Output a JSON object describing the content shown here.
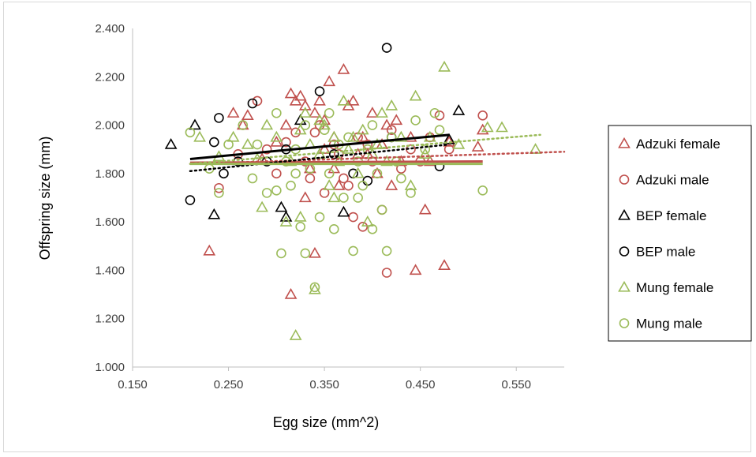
{
  "chart_data": {
    "type": "scatter",
    "xlabel": "Egg size (mm^2)",
    "ylabel": "Offspring size (mm)",
    "xlim": [
      0.15,
      0.6
    ],
    "ylim": [
      1.0,
      2.4
    ],
    "xticks": [
      "0.150",
      "0.250",
      "0.350",
      "0.450",
      "0.550"
    ],
    "yticks": [
      "1.000",
      "1.200",
      "1.400",
      "1.600",
      "1.800",
      "2.000",
      "2.200",
      "2.400"
    ],
    "grid": false,
    "legend_position": "right",
    "series": [
      {
        "name": "Adzuki female",
        "marker": "triangle",
        "color": "#c0504d",
        "points": [
          [
            0.23,
            1.48
          ],
          [
            0.255,
            2.05
          ],
          [
            0.265,
            2.0
          ],
          [
            0.27,
            2.04
          ],
          [
            0.285,
            1.86
          ],
          [
            0.3,
            1.93
          ],
          [
            0.31,
            2.0
          ],
          [
            0.315,
            2.13
          ],
          [
            0.315,
            1.3
          ],
          [
            0.32,
            2.1
          ],
          [
            0.325,
            2.12
          ],
          [
            0.33,
            2.08
          ],
          [
            0.335,
            1.82
          ],
          [
            0.34,
            2.05
          ],
          [
            0.34,
            1.47
          ],
          [
            0.345,
            2.1
          ],
          [
            0.35,
            1.9
          ],
          [
            0.355,
            2.18
          ],
          [
            0.36,
            1.95
          ],
          [
            0.365,
            1.75
          ],
          [
            0.37,
            2.23
          ],
          [
            0.375,
            2.08
          ],
          [
            0.38,
            2.1
          ],
          [
            0.39,
            1.95
          ],
          [
            0.395,
            1.88
          ],
          [
            0.4,
            2.05
          ],
          [
            0.405,
            1.8
          ],
          [
            0.41,
            1.92
          ],
          [
            0.415,
            2.0
          ],
          [
            0.42,
            1.75
          ],
          [
            0.425,
            2.02
          ],
          [
            0.43,
            1.85
          ],
          [
            0.44,
            1.95
          ],
          [
            0.445,
            1.4
          ],
          [
            0.455,
            1.65
          ],
          [
            0.46,
            1.85
          ],
          [
            0.475,
            1.42
          ],
          [
            0.48,
            1.93
          ],
          [
            0.51,
            1.91
          ],
          [
            0.515,
            1.98
          ],
          [
            0.33,
            1.7
          ],
          [
            0.36,
            1.82
          ],
          [
            0.385,
            1.88
          ],
          [
            0.35,
            2.02
          ]
        ]
      },
      {
        "name": "Adzuki male",
        "marker": "circle",
        "color": "#c0504d",
        "points": [
          [
            0.24,
            1.74
          ],
          [
            0.26,
            1.88
          ],
          [
            0.28,
            2.1
          ],
          [
            0.29,
            1.9
          ],
          [
            0.3,
            1.8
          ],
          [
            0.31,
            1.93
          ],
          [
            0.32,
            1.97
          ],
          [
            0.33,
            1.85
          ],
          [
            0.34,
            1.97
          ],
          [
            0.35,
            1.72
          ],
          [
            0.36,
            1.92
          ],
          [
            0.365,
            1.88
          ],
          [
            0.37,
            1.78
          ],
          [
            0.38,
            1.62
          ],
          [
            0.385,
            1.95
          ],
          [
            0.39,
            1.58
          ],
          [
            0.4,
            1.85
          ],
          [
            0.41,
            1.65
          ],
          [
            0.415,
            1.39
          ],
          [
            0.42,
            1.98
          ],
          [
            0.43,
            1.82
          ],
          [
            0.44,
            1.9
          ],
          [
            0.45,
            1.85
          ],
          [
            0.46,
            1.95
          ],
          [
            0.47,
            2.04
          ],
          [
            0.48,
            1.9
          ],
          [
            0.515,
            2.04
          ],
          [
            0.345,
            2.0
          ],
          [
            0.375,
            1.75
          ],
          [
            0.395,
            1.92
          ],
          [
            0.335,
            1.78
          ]
        ]
      },
      {
        "name": "BEP female",
        "marker": "triangle",
        "color": "#000000",
        "points": [
          [
            0.19,
            1.92
          ],
          [
            0.215,
            2.0
          ],
          [
            0.235,
            1.63
          ],
          [
            0.305,
            1.66
          ],
          [
            0.31,
            1.62
          ],
          [
            0.325,
            2.02
          ],
          [
            0.37,
            1.64
          ],
          [
            0.48,
            1.94
          ],
          [
            0.49,
            2.06
          ]
        ]
      },
      {
        "name": "BEP male",
        "marker": "circle",
        "color": "#000000",
        "points": [
          [
            0.21,
            1.69
          ],
          [
            0.235,
            1.93
          ],
          [
            0.24,
            2.03
          ],
          [
            0.245,
            1.8
          ],
          [
            0.26,
            1.85
          ],
          [
            0.275,
            2.09
          ],
          [
            0.29,
            1.85
          ],
          [
            0.31,
            1.9
          ],
          [
            0.345,
            2.14
          ],
          [
            0.36,
            1.88
          ],
          [
            0.38,
            1.8
          ],
          [
            0.395,
            1.77
          ],
          [
            0.415,
            2.32
          ],
          [
            0.42,
            1.95
          ],
          [
            0.47,
            1.83
          ]
        ]
      },
      {
        "name": "Mung female",
        "marker": "triangle",
        "color": "#9bbb59",
        "points": [
          [
            0.22,
            1.95
          ],
          [
            0.24,
            1.87
          ],
          [
            0.255,
            1.95
          ],
          [
            0.27,
            1.92
          ],
          [
            0.28,
            1.86
          ],
          [
            0.285,
            1.66
          ],
          [
            0.29,
            2.0
          ],
          [
            0.3,
            1.95
          ],
          [
            0.31,
            1.6
          ],
          [
            0.315,
            1.85
          ],
          [
            0.32,
            1.13
          ],
          [
            0.325,
            1.98
          ],
          [
            0.33,
            2.05
          ],
          [
            0.335,
            1.92
          ],
          [
            0.34,
            1.32
          ],
          [
            0.345,
            1.88
          ],
          [
            0.35,
            2.0
          ],
          [
            0.355,
            1.75
          ],
          [
            0.36,
            1.95
          ],
          [
            0.365,
            1.85
          ],
          [
            0.37,
            2.1
          ],
          [
            0.375,
            1.9
          ],
          [
            0.38,
            1.95
          ],
          [
            0.385,
            1.8
          ],
          [
            0.39,
            1.98
          ],
          [
            0.395,
            1.6
          ],
          [
            0.4,
            1.88
          ],
          [
            0.405,
            1.92
          ],
          [
            0.41,
            2.05
          ],
          [
            0.415,
            1.85
          ],
          [
            0.42,
            2.08
          ],
          [
            0.43,
            1.95
          ],
          [
            0.44,
            1.75
          ],
          [
            0.445,
            2.12
          ],
          [
            0.455,
            1.88
          ],
          [
            0.46,
            1.95
          ],
          [
            0.475,
            2.24
          ],
          [
            0.49,
            1.92
          ],
          [
            0.52,
            1.99
          ],
          [
            0.535,
            1.99
          ],
          [
            0.57,
            1.9
          ],
          [
            0.325,
            1.62
          ],
          [
            0.36,
            1.7
          ],
          [
            0.345,
            2.02
          ]
        ]
      },
      {
        "name": "Mung male",
        "marker": "circle",
        "color": "#9bbb59",
        "points": [
          [
            0.21,
            1.97
          ],
          [
            0.23,
            1.82
          ],
          [
            0.24,
            1.72
          ],
          [
            0.25,
            1.92
          ],
          [
            0.265,
            2.0
          ],
          [
            0.275,
            1.78
          ],
          [
            0.28,
            1.92
          ],
          [
            0.29,
            1.72
          ],
          [
            0.3,
            2.05
          ],
          [
            0.305,
            1.47
          ],
          [
            0.31,
            1.85
          ],
          [
            0.315,
            1.75
          ],
          [
            0.32,
            1.9
          ],
          [
            0.325,
            1.58
          ],
          [
            0.33,
            1.47
          ],
          [
            0.335,
            1.82
          ],
          [
            0.34,
            1.33
          ],
          [
            0.345,
            1.62
          ],
          [
            0.35,
            1.98
          ],
          [
            0.355,
            1.8
          ],
          [
            0.36,
            1.57
          ],
          [
            0.365,
            1.92
          ],
          [
            0.37,
            1.7
          ],
          [
            0.375,
            1.95
          ],
          [
            0.38,
            1.48
          ],
          [
            0.385,
            1.85
          ],
          [
            0.39,
            1.75
          ],
          [
            0.395,
            1.9
          ],
          [
            0.4,
            1.57
          ],
          [
            0.405,
            1.8
          ],
          [
            0.41,
            1.65
          ],
          [
            0.415,
            1.48
          ],
          [
            0.42,
            1.95
          ],
          [
            0.425,
            1.85
          ],
          [
            0.43,
            1.78
          ],
          [
            0.44,
            1.72
          ],
          [
            0.445,
            2.02
          ],
          [
            0.455,
            1.9
          ],
          [
            0.465,
            2.05
          ],
          [
            0.47,
            1.98
          ],
          [
            0.515,
            1.73
          ],
          [
            0.3,
            1.73
          ],
          [
            0.33,
            2.0
          ],
          [
            0.355,
            2.05
          ],
          [
            0.385,
            1.7
          ],
          [
            0.4,
            2.0
          ],
          [
            0.32,
            1.8
          ]
        ]
      }
    ],
    "trendlines": [
      {
        "series": "Adzuki female",
        "style": "solid",
        "color": "#c0504d",
        "x": [
          0.21,
          0.515
        ],
        "y": [
          1.845,
          1.85
        ]
      },
      {
        "series": "Adzuki male",
        "style": "dotted",
        "color": "#c0504d",
        "x": [
          0.21,
          0.6
        ],
        "y": [
          1.84,
          1.89
        ]
      },
      {
        "series": "BEP female",
        "style": "solid",
        "color": "#000000",
        "x": [
          0.21,
          0.48
        ],
        "y": [
          1.86,
          1.96
        ]
      },
      {
        "series": "BEP male",
        "style": "dotted",
        "color": "#000000",
        "x": [
          0.21,
          0.48
        ],
        "y": [
          1.81,
          1.92
        ]
      },
      {
        "series": "Mung female",
        "style": "dotted",
        "color": "#9bbb59",
        "x": [
          0.21,
          0.575
        ],
        "y": [
          1.84,
          1.96
        ]
      },
      {
        "series": "Mung male",
        "style": "solid",
        "color": "#9bbb59",
        "x": [
          0.21,
          0.515
        ],
        "y": [
          1.84,
          1.84
        ]
      }
    ]
  }
}
